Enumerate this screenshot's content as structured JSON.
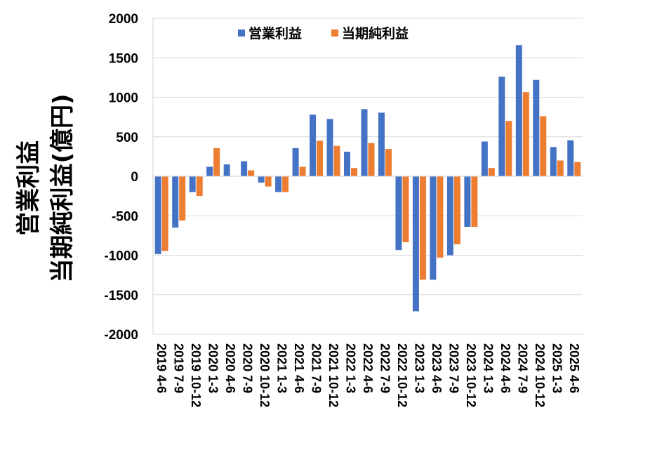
{
  "chart_data": {
    "type": "bar",
    "ylabel_lines": [
      "営業利益",
      "当期純利益(億円)"
    ],
    "ylim": [
      -2000,
      2000
    ],
    "yticks": [
      2000,
      1500,
      1000,
      500,
      0,
      -500,
      -1000,
      -1500,
      -2000
    ],
    "legend_position": "top",
    "categories": [
      "2019 4-6",
      "2019 7-9",
      "2019 10-12",
      "2020 1-3",
      "2020 4-6",
      "2020 7-9",
      "2020 10-12",
      "2021 1-3",
      "2021 4-6",
      "2021 7-9",
      "2021 10-12",
      "2022 1-3",
      "2022 4-6",
      "2022 7-9",
      "2022 10-12",
      "2023 1-3",
      "2023 4-6",
      "2023 7-9",
      "2023 10-12",
      "2024 1-3",
      "2024 4-6",
      "2024 7-9",
      "2024 10-12",
      "2025 1-3",
      "2025 4-6"
    ],
    "series": [
      {
        "name": "営業利益",
        "color": "#4472C4",
        "values": [
          -985,
          -650,
          -200,
          120,
          150,
          190,
          -80,
          -200,
          355,
          780,
          725,
          310,
          850,
          805,
          -935,
          -1710,
          -1310,
          -1000,
          -640,
          440,
          1260,
          1660,
          1220,
          370,
          455
        ]
      },
      {
        "name": "当期純利益",
        "color": "#ED7D31",
        "values": [
          -945,
          -560,
          -250,
          355,
          0,
          75,
          -130,
          -200,
          120,
          450,
          385,
          105,
          420,
          345,
          -835,
          -1310,
          -1030,
          -860,
          -640,
          105,
          700,
          1065,
          760,
          200,
          180
        ]
      }
    ]
  }
}
